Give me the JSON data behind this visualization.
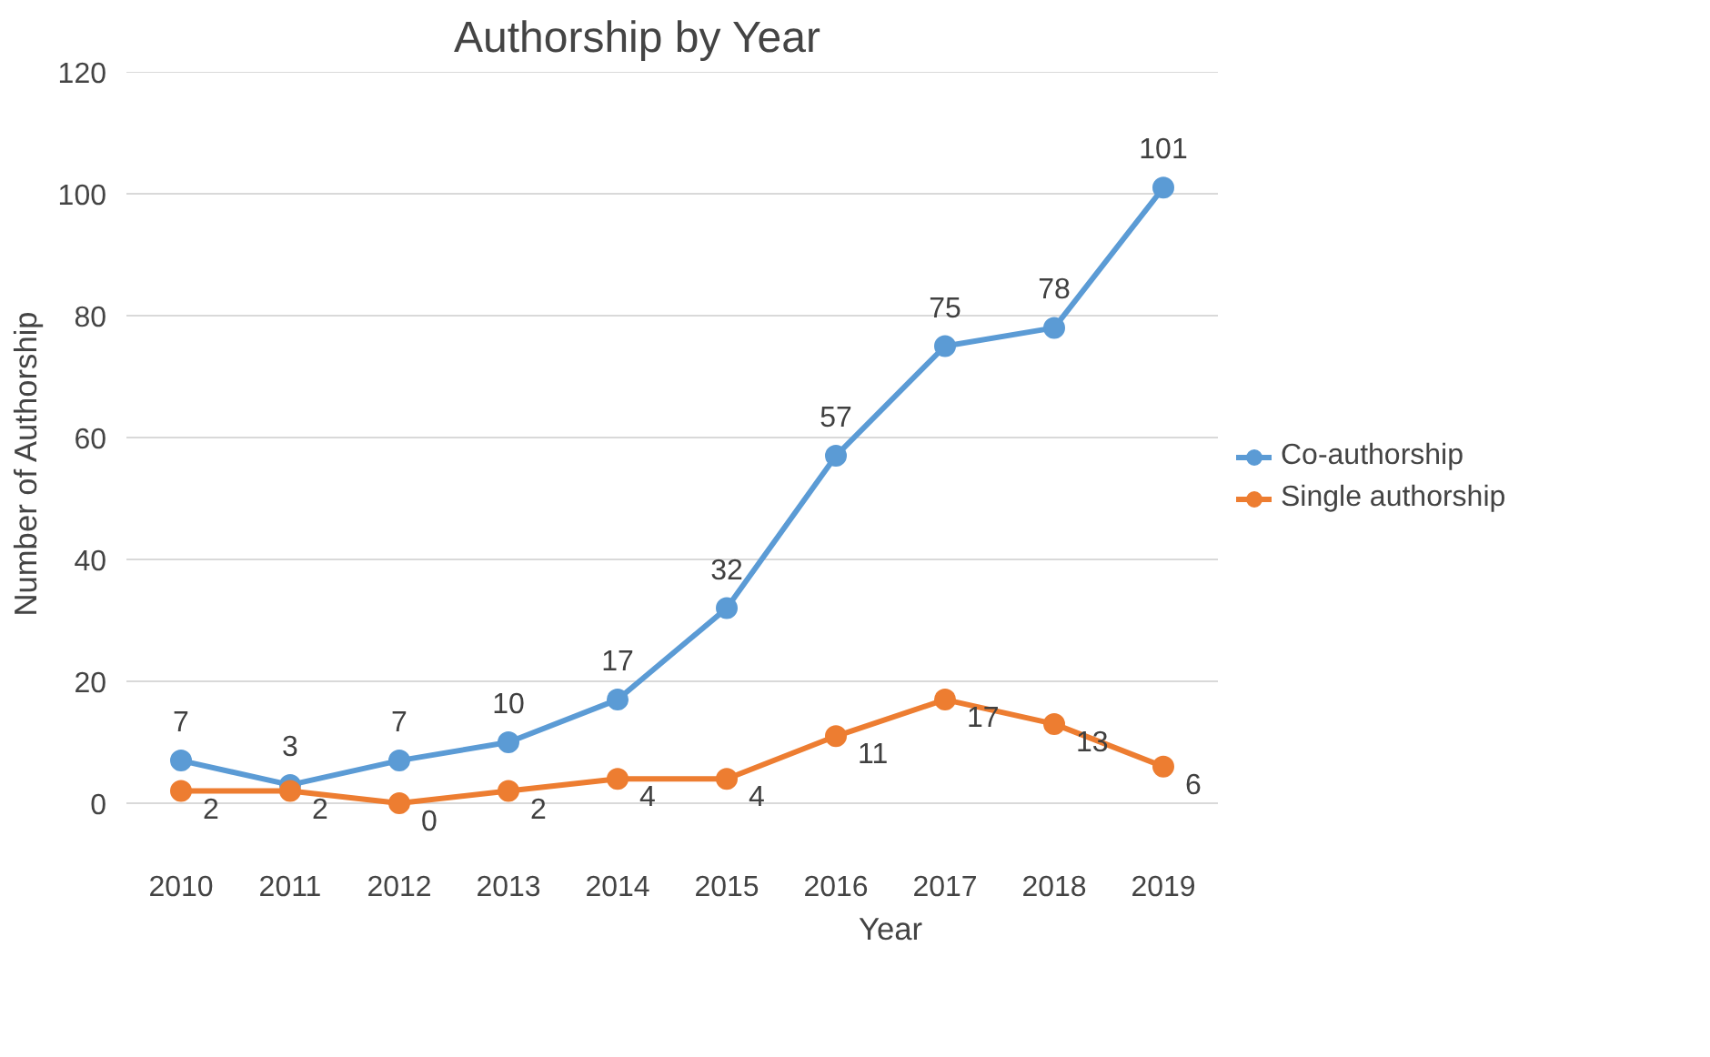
{
  "chart_data": {
    "type": "line",
    "title": "Authorship by Year",
    "xlabel": "Year",
    "ylabel": "Number of Authorship",
    "categories": [
      "2010",
      "2011",
      "2012",
      "2013",
      "2014",
      "2015",
      "2016",
      "2017",
      "2018",
      "2019"
    ],
    "series": [
      {
        "name": "Co-authorship",
        "color": "#5b9bd5",
        "values": [
          7,
          3,
          7,
          10,
          17,
          32,
          57,
          75,
          78,
          101
        ]
      },
      {
        "name": "Single authorship",
        "color": "#ed7d31",
        "values": [
          2,
          2,
          0,
          2,
          4,
          4,
          11,
          17,
          13,
          6
        ]
      }
    ],
    "ylim": [
      0,
      120
    ],
    "yticks": [
      0,
      20,
      40,
      60,
      80,
      100,
      120
    ],
    "grid": "y",
    "legend": "right",
    "marker": "circle",
    "line_style": "solid",
    "data_labels": true
  }
}
